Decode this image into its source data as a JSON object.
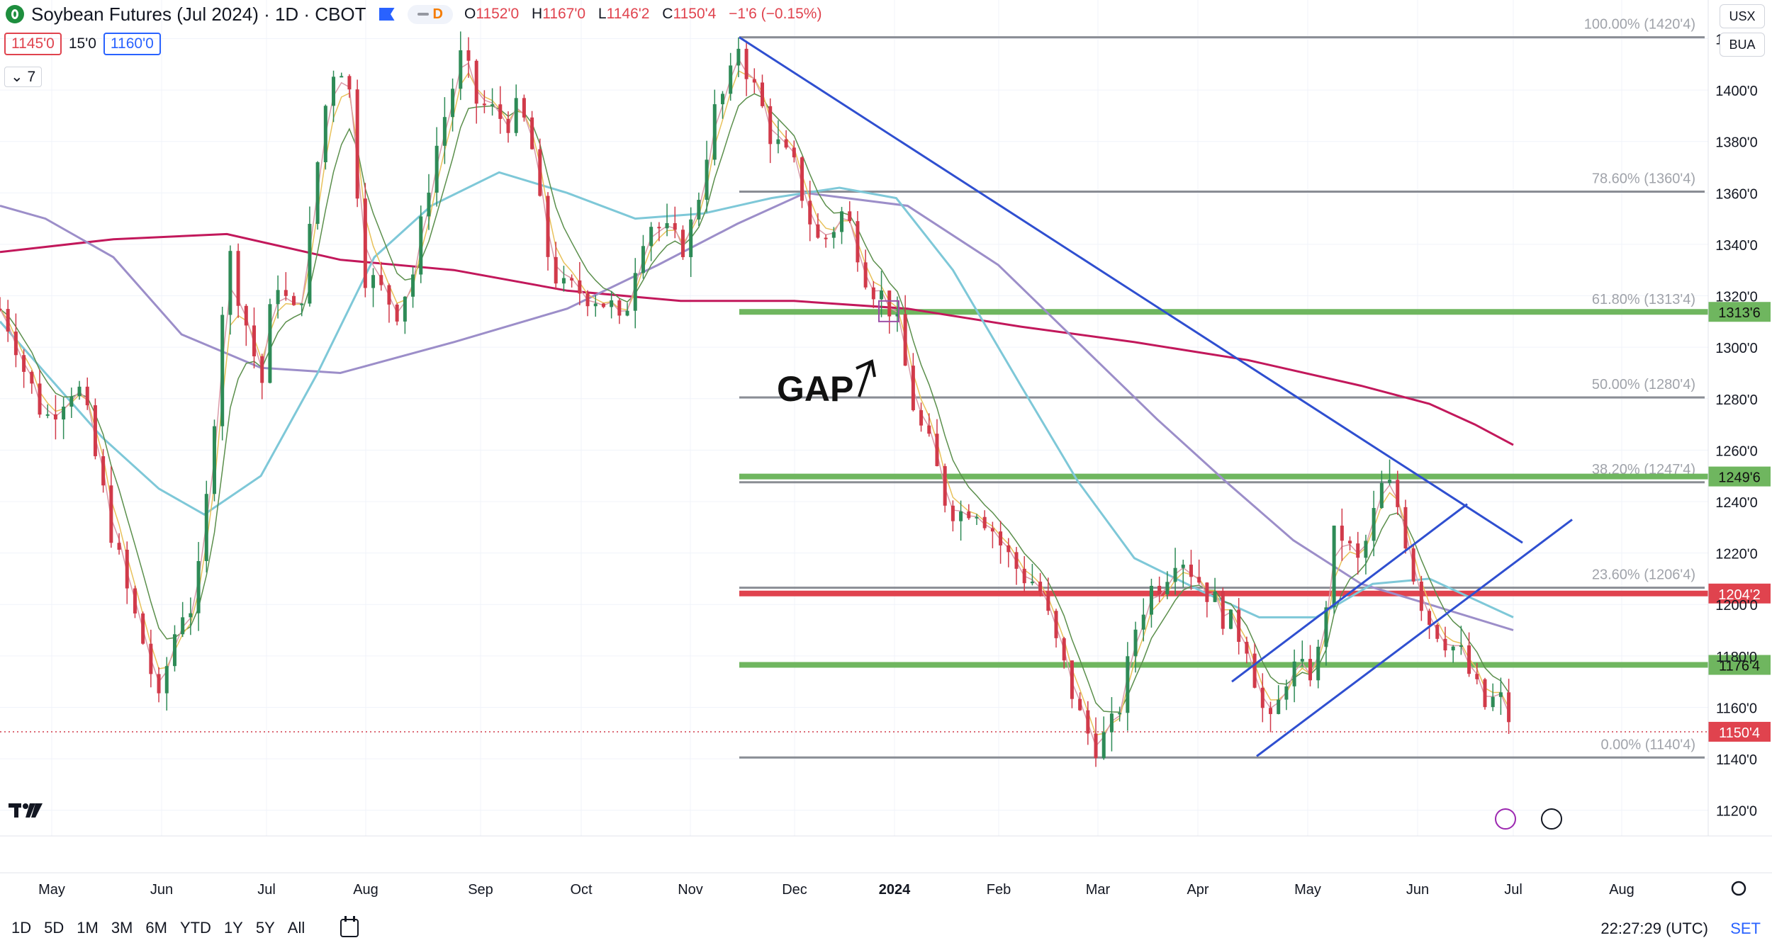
{
  "header": {
    "title": "Soybean Futures (Jul 2024) · 1D · CBOT",
    "pill_letter": "D",
    "ohlc": [
      {
        "key": "O",
        "value": "1152'0"
      },
      {
        "key": "H",
        "value": "1167'0"
      },
      {
        "key": "L",
        "value": "1146'2"
      },
      {
        "key": "C",
        "value": "1150'4"
      }
    ],
    "change": "−1'6 (−0.15%)",
    "bid": "1145'0",
    "spread": "15'0",
    "ask": "1160'0",
    "indicators_count": "7"
  },
  "top_right": {
    "currency": "USX",
    "unit": "BUA"
  },
  "bottom": {
    "ranges": [
      "1D",
      "5D",
      "1M",
      "3M",
      "6M",
      "YTD",
      "1Y",
      "5Y",
      "All"
    ],
    "clock": "22:27:29 (UTC)",
    "settings": "SET"
  },
  "annotation": {
    "gap_label": "GAP"
  },
  "colors": {
    "up": "#2e8b57",
    "down": "#d13a4a",
    "trend": "#2f4fd0",
    "support": "#6fb65f",
    "resistance": "#e0434e",
    "fib": "#8a8d94",
    "sma200": "#c2185b",
    "sma100": "#9c8ec9",
    "sma50": "#7ec8d8",
    "ema20": "#5b8f4c",
    "ema10": "#e8c15a",
    "ema5": "#d99aa8"
  },
  "chart_data": {
    "type": "candlestick",
    "title": "Soybean Futures (Jul 2024) · 1D · CBOT",
    "y_range": [
      1110,
      1435
    ],
    "y_ticks": [
      "1420'0",
      "1400'0",
      "1380'0",
      "1360'0",
      "1340'0",
      "1320'0",
      "1300'0",
      "1280'0",
      "1260'0",
      "1240'0",
      "1220'0",
      "1200'0",
      "1180'0",
      "1160'0",
      "1140'0",
      "1120'0"
    ],
    "x_labels": [
      "May",
      "Jun",
      "Jul",
      "Aug",
      "Sep",
      "Oct",
      "Nov",
      "Dec",
      "2024",
      "Feb",
      "Mar",
      "Apr",
      "May",
      "Jun",
      "Jul",
      "Aug"
    ],
    "fib_levels": [
      {
        "label": "100.00% (1420'4)",
        "value": 1420.5
      },
      {
        "label": "78.60% (1360'4)",
        "value": 1360.5
      },
      {
        "label": "61.80% (1313'4)",
        "value": 1313.5
      },
      {
        "label": "50.00% (1280'4)",
        "value": 1280.5
      },
      {
        "label": "38.20% (1247'4)",
        "value": 1247.5
      },
      {
        "label": "23.60% (1206'4)",
        "value": 1206.5
      },
      {
        "label": "0.00% (1140'4)",
        "value": 1140.5
      }
    ],
    "price_lines": [
      {
        "label": "1313'6",
        "value": 1313.75,
        "kind": "support"
      },
      {
        "label": "1249'6",
        "value": 1249.75,
        "kind": "support"
      },
      {
        "label": "1204'2",
        "value": 1204.25,
        "kind": "resistance"
      },
      {
        "label": "1176'4",
        "value": 1176.5,
        "kind": "support"
      }
    ],
    "last_price": {
      "label": "1150'4",
      "value": 1150.5
    },
    "trend_lines": [
      {
        "from": [
          "Nov-17",
          1420.5
        ],
        "to": [
          "Jul-08",
          1224
        ]
      },
      {
        "from": [
          "Apr-22",
          1141
        ],
        "to": [
          "Jul-24",
          1233
        ]
      },
      {
        "from": [
          "Apr-15",
          1170
        ],
        "to": [
          "Jun-20",
          1239
        ]
      }
    ],
    "gap_box": [
      1318,
      1310
    ],
    "price_path": [
      [
        0,
        1315
      ],
      [
        12,
        1305
      ],
      [
        22,
        1290
      ],
      [
        40,
        1272
      ],
      [
        62,
        1285
      ],
      [
        72,
        1282
      ],
      [
        85,
        1255
      ],
      [
        100,
        1225
      ],
      [
        115,
        1200
      ],
      [
        130,
        1180
      ],
      [
        140,
        1160
      ],
      [
        150,
        1183
      ],
      [
        160,
        1198
      ],
      [
        172,
        1200
      ],
      [
        180,
        1230
      ],
      [
        190,
        1280
      ],
      [
        200,
        1340
      ],
      [
        210,
        1322
      ],
      [
        222,
        1300
      ],
      [
        232,
        1285
      ],
      [
        242,
        1330
      ],
      [
        252,
        1318
      ],
      [
        262,
        1310
      ],
      [
        272,
        1340
      ],
      [
        282,
        1380
      ],
      [
        292,
        1408
      ],
      [
        302,
        1410
      ],
      [
        310,
        1395
      ],
      [
        320,
        1330
      ],
      [
        335,
        1322
      ],
      [
        350,
        1315
      ],
      [
        365,
        1330
      ],
      [
        380,
        1370
      ],
      [
        398,
        1400
      ],
      [
        408,
        1415
      ],
      [
        418,
        1396
      ],
      [
        432,
        1392
      ],
      [
        446,
        1388
      ],
      [
        458,
        1392
      ],
      [
        468,
        1380
      ],
      [
        480,
        1340
      ],
      [
        495,
        1322
      ],
      [
        510,
        1322
      ],
      [
        525,
        1320
      ],
      [
        540,
        1315
      ],
      [
        548,
        1305
      ],
      [
        558,
        1330
      ],
      [
        570,
        1350
      ],
      [
        585,
        1345
      ],
      [
        600,
        1338
      ],
      [
        612,
        1350
      ],
      [
        622,
        1375
      ],
      [
        632,
        1395
      ],
      [
        642,
        1400
      ],
      [
        652,
        1420
      ],
      [
        660,
        1405
      ],
      [
        670,
        1395
      ],
      [
        680,
        1382
      ],
      [
        690,
        1375
      ],
      [
        702,
        1368
      ],
      [
        712,
        1352
      ],
      [
        722,
        1340
      ],
      [
        732,
        1345
      ],
      [
        742,
        1352
      ],
      [
        752,
        1345
      ],
      [
        762,
        1330
      ],
      [
        772,
        1322
      ],
      [
        782,
        1318
      ],
      [
        788,
        1312
      ],
      [
        794,
        1302
      ],
      [
        802,
        1282
      ],
      [
        812,
        1268
      ],
      [
        822,
        1258
      ],
      [
        832,
        1242
      ],
      [
        845,
        1235
      ],
      [
        858,
        1240
      ],
      [
        872,
        1232
      ],
      [
        886,
        1220
      ],
      [
        900,
        1212
      ],
      [
        915,
        1208
      ],
      [
        928,
        1188
      ],
      [
        942,
        1170
      ],
      [
        955,
        1152
      ],
      [
        968,
        1145
      ],
      [
        980,
        1152
      ],
      [
        990,
        1165
      ],
      [
        1000,
        1190
      ],
      [
        1012,
        1205
      ],
      [
        1025,
        1210
      ],
      [
        1038,
        1222
      ],
      [
        1048,
        1215
      ],
      [
        1060,
        1208
      ],
      [
        1072,
        1200
      ],
      [
        1085,
        1192
      ],
      [
        1100,
        1185
      ],
      [
        1112,
        1160
      ],
      [
        1122,
        1150
      ],
      [
        1132,
        1172
      ],
      [
        1142,
        1175
      ],
      [
        1152,
        1172
      ],
      [
        1162,
        1180
      ],
      [
        1170,
        1205
      ],
      [
        1178,
        1232
      ],
      [
        1188,
        1222
      ],
      [
        1198,
        1215
      ],
      [
        1208,
        1230
      ],
      [
        1218,
        1245
      ],
      [
        1228,
        1245
      ],
      [
        1238,
        1228
      ],
      [
        1248,
        1208
      ],
      [
        1258,
        1195
      ],
      [
        1268,
        1190
      ],
      [
        1278,
        1185
      ],
      [
        1288,
        1180
      ],
      [
        1298,
        1170
      ],
      [
        1308,
        1160
      ],
      [
        1318,
        1163
      ],
      [
        1326,
        1162
      ],
      [
        1334,
        1150
      ]
    ],
    "sma200": [
      [
        0,
        1337
      ],
      [
        100,
        1342
      ],
      [
        200,
        1344
      ],
      [
        300,
        1334
      ],
      [
        400,
        1330
      ],
      [
        500,
        1322
      ],
      [
        600,
        1318
      ],
      [
        700,
        1318
      ],
      [
        800,
        1315
      ],
      [
        900,
        1308
      ],
      [
        1000,
        1302
      ],
      [
        1100,
        1295
      ],
      [
        1200,
        1285
      ],
      [
        1260,
        1278
      ],
      [
        1300,
        1270
      ],
      [
        1334,
        1262
      ]
    ],
    "sma100": [
      [
        0,
        1355
      ],
      [
        40,
        1350
      ],
      [
        100,
        1335
      ],
      [
        160,
        1305
      ],
      [
        230,
        1292
      ],
      [
        300,
        1290
      ],
      [
        400,
        1302
      ],
      [
        500,
        1315
      ],
      [
        580,
        1332
      ],
      [
        650,
        1348
      ],
      [
        710,
        1360
      ],
      [
        800,
        1355
      ],
      [
        880,
        1332
      ],
      [
        950,
        1302
      ],
      [
        1020,
        1272
      ],
      [
        1080,
        1248
      ],
      [
        1140,
        1225
      ],
      [
        1200,
        1208
      ],
      [
        1260,
        1200
      ],
      [
        1334,
        1190
      ]
    ],
    "sma50": [
      [
        0,
        1310
      ],
      [
        40,
        1290
      ],
      [
        90,
        1265
      ],
      [
        140,
        1245
      ],
      [
        180,
        1235
      ],
      [
        230,
        1250
      ],
      [
        280,
        1290
      ],
      [
        330,
        1335
      ],
      [
        380,
        1355
      ],
      [
        440,
        1368
      ],
      [
        500,
        1360
      ],
      [
        560,
        1350
      ],
      [
        620,
        1352
      ],
      [
        680,
        1358
      ],
      [
        740,
        1362
      ],
      [
        790,
        1358
      ],
      [
        840,
        1330
      ],
      [
        900,
        1285
      ],
      [
        950,
        1248
      ],
      [
        1000,
        1218
      ],
      [
        1060,
        1205
      ],
      [
        1110,
        1195
      ],
      [
        1160,
        1195
      ],
      [
        1210,
        1208
      ],
      [
        1260,
        1210
      ],
      [
        1334,
        1195
      ]
    ]
  }
}
